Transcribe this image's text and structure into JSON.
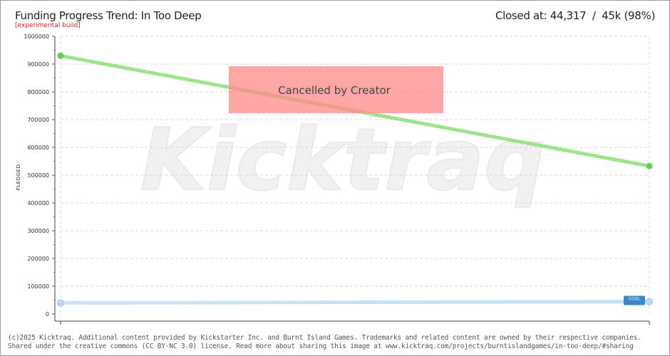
{
  "header": {
    "title": "Funding Progress Trend: In Too Deep",
    "subtitle": "[experimental build]",
    "status_label": "Closed at:",
    "status_pledged": "44,317",
    "status_sep": "/",
    "status_goal": "45k (98%)"
  },
  "watermark": "Kicktraq",
  "footer": {
    "line1": "(c)2025 Kicktraq. Additional content provided by Kickstarter Inc. and Burnt Island Games. Trademarks and related content are owned by their respective companies.",
    "line2": "Shared under the creative commons (CC BY-NC 3.0) license. Read more about sharing this image at www.kicktraq.com/projects/burntislandgames/in-too-deep/#sharing"
  },
  "colors": {
    "trend": "#8fe07a",
    "trend_marker": "#66cc55",
    "progress": "#b9dcf5",
    "progress_marker": "#bcd8f4",
    "goal_label_bg": "#3a86c8",
    "cancel_box": "#ff8a8a",
    "grid": "#d8d8d8"
  },
  "chart_data": {
    "type": "line",
    "title": "",
    "xlabel": "",
    "ylabel": "PLEDGED",
    "ylim": [
      0,
      1000000
    ],
    "yticks": [
      0,
      100000,
      200000,
      300000,
      400000,
      500000,
      600000,
      700000,
      800000,
      900000,
      1000000
    ],
    "ytick_labels": [
      "0",
      "100000",
      "200000",
      "300000",
      "400000",
      "500000",
      "600000",
      "700000",
      "800000",
      "900000",
      "1000000"
    ],
    "grid": true,
    "x_points": 2,
    "series": [
      {
        "key": "trend",
        "values": [
          930000,
          533000
        ]
      },
      {
        "key": "progress",
        "values": [
          40000,
          44317
        ]
      }
    ],
    "goal": {
      "value": 45000,
      "label": "GOAL"
    },
    "annotation": "Cancelled by Creator"
  }
}
